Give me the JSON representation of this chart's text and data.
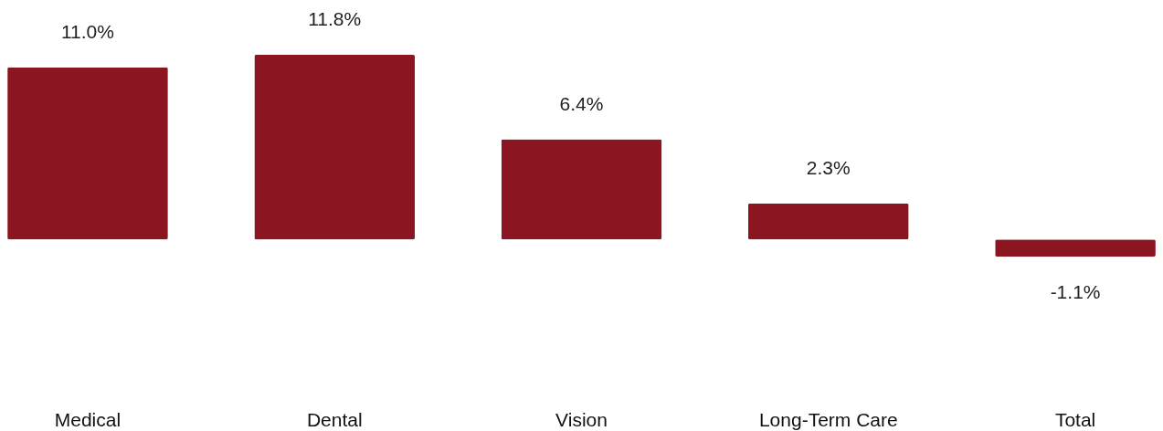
{
  "chart_data": {
    "type": "bar",
    "categories": [
      "Medical",
      "Dental",
      "Vision",
      "Long-Term Care",
      "Total"
    ],
    "values": [
      11.0,
      11.8,
      6.4,
      2.3,
      -1.1
    ],
    "value_labels": [
      "11.0%",
      "11.8%",
      "6.4%",
      "2.3%",
      "-1.1%"
    ],
    "color": "#8b1520"
  }
}
